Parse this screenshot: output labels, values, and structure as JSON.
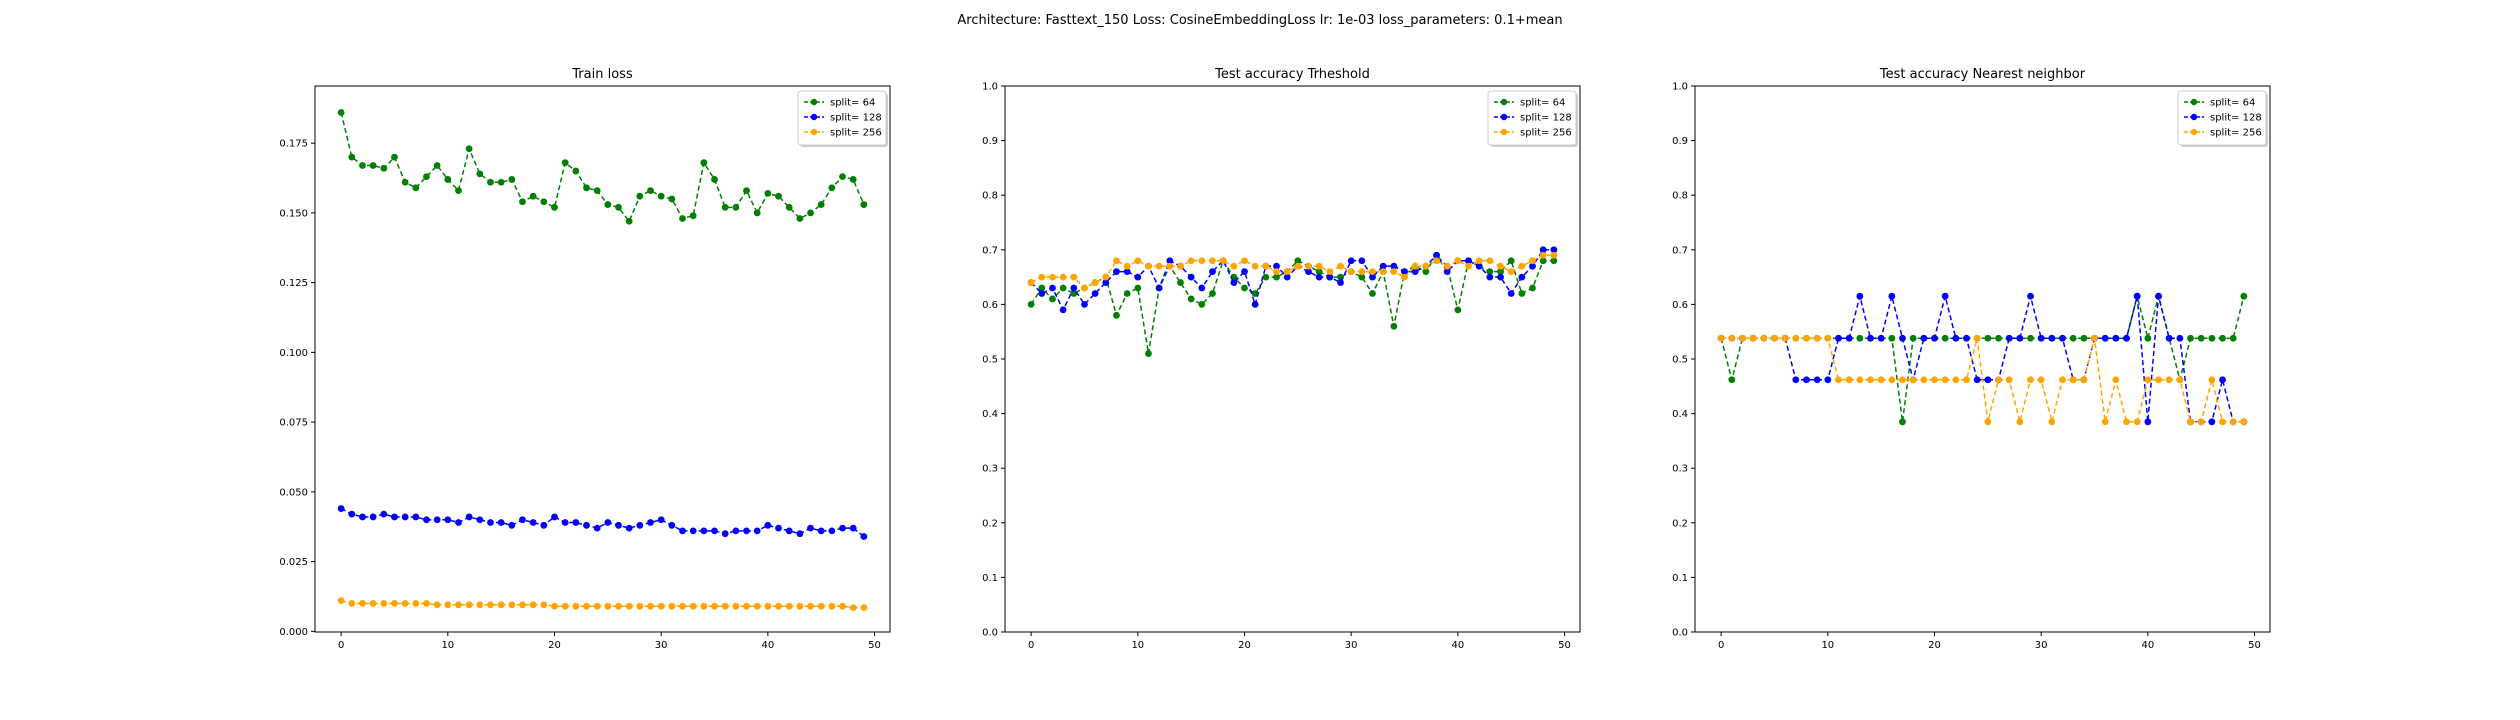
{
  "figure": {
    "suptitle": "Architecture: Fasttext_150 Loss: CosineEmbeddingLoss lr: 1e-03 loss_parameters: 0.1+mean",
    "background": "#ffffff"
  },
  "chart_data": [
    {
      "type": "line",
      "title": "Train loss",
      "xlabel": "",
      "ylabel": "",
      "xlim": [
        -2.45,
        51.45
      ],
      "ylim": [
        -0.00025,
        0.1955
      ],
      "xticks": [
        0,
        10,
        20,
        30,
        40,
        50
      ],
      "yticks": [
        0.0,
        0.025,
        0.05,
        0.075,
        0.1,
        0.125,
        0.15,
        0.175
      ],
      "ytick_labels": [
        "0.000",
        "0.025",
        "0.050",
        "0.075",
        "0.100",
        "0.125",
        "0.150",
        "0.175"
      ],
      "grid": false,
      "legend_position": "top-right",
      "marker": "circle",
      "line_style": "dashed",
      "x": [
        0,
        1,
        2,
        3,
        4,
        5,
        6,
        7,
        8,
        9,
        10,
        11,
        12,
        13,
        14,
        15,
        16,
        17,
        18,
        19,
        20,
        21,
        22,
        23,
        24,
        25,
        26,
        27,
        28,
        29,
        30,
        31,
        32,
        33,
        34,
        35,
        36,
        37,
        38,
        39,
        40,
        41,
        42,
        43,
        44,
        45,
        46,
        47,
        48,
        49
      ],
      "series": [
        {
          "name": "split= 64",
          "color": "#008000",
          "values": [
            0.186,
            0.17,
            0.167,
            0.167,
            0.166,
            0.17,
            0.161,
            0.159,
            0.163,
            0.167,
            0.162,
            0.158,
            0.173,
            0.164,
            0.161,
            0.161,
            0.162,
            0.154,
            0.156,
            0.154,
            0.152,
            0.168,
            0.165,
            0.159,
            0.158,
            0.153,
            0.152,
            0.147,
            0.156,
            0.158,
            0.156,
            0.155,
            0.148,
            0.149,
            0.168,
            0.162,
            0.152,
            0.152,
            0.158,
            0.15,
            0.157,
            0.156,
            0.152,
            0.148,
            0.15,
            0.153,
            0.159,
            0.163,
            0.162,
            0.153
          ]
        },
        {
          "name": "split= 128",
          "color": "#0000ff",
          "values": [
            0.044,
            0.042,
            0.041,
            0.041,
            0.042,
            0.041,
            0.041,
            0.041,
            0.04,
            0.04,
            0.04,
            0.039,
            0.041,
            0.04,
            0.039,
            0.039,
            0.038,
            0.04,
            0.039,
            0.038,
            0.041,
            0.039,
            0.039,
            0.038,
            0.037,
            0.039,
            0.038,
            0.037,
            0.038,
            0.039,
            0.04,
            0.038,
            0.036,
            0.036,
            0.036,
            0.036,
            0.035,
            0.036,
            0.036,
            0.036,
            0.038,
            0.037,
            0.036,
            0.035,
            0.037,
            0.036,
            0.036,
            0.037,
            0.037,
            0.034
          ]
        },
        {
          "name": "split= 256",
          "color": "#ffa500",
          "values": [
            0.011,
            0.01,
            0.01,
            0.01,
            0.01,
            0.01,
            0.01,
            0.01,
            0.01,
            0.0095,
            0.0095,
            0.0095,
            0.0095,
            0.0095,
            0.0095,
            0.0095,
            0.0095,
            0.0095,
            0.0095,
            0.0095,
            0.009,
            0.009,
            0.009,
            0.009,
            0.009,
            0.009,
            0.009,
            0.009,
            0.009,
            0.009,
            0.009,
            0.009,
            0.009,
            0.009,
            0.009,
            0.009,
            0.009,
            0.009,
            0.009,
            0.009,
            0.009,
            0.009,
            0.009,
            0.009,
            0.009,
            0.009,
            0.009,
            0.009,
            0.0085,
            0.0085
          ]
        }
      ]
    },
    {
      "type": "line",
      "title": "Test accuracy Trheshold",
      "xlabel": "",
      "ylabel": "",
      "xlim": [
        -2.45,
        51.45
      ],
      "ylim": [
        0.0,
        1.0
      ],
      "xticks": [
        0,
        10,
        20,
        30,
        40,
        50
      ],
      "yticks": [
        0.0,
        0.1,
        0.2,
        0.3,
        0.4,
        0.5,
        0.6,
        0.7,
        0.8,
        0.9,
        1.0
      ],
      "ytick_labels": [
        "0.0",
        "0.1",
        "0.2",
        "0.3",
        "0.4",
        "0.5",
        "0.6",
        "0.7",
        "0.8",
        "0.9",
        "1.0"
      ],
      "grid": false,
      "legend_position": "top-right",
      "marker": "circle",
      "line_style": "dashed",
      "x": [
        0,
        1,
        2,
        3,
        4,
        5,
        6,
        7,
        8,
        9,
        10,
        11,
        12,
        13,
        14,
        15,
        16,
        17,
        18,
        19,
        20,
        21,
        22,
        23,
        24,
        25,
        26,
        27,
        28,
        29,
        30,
        31,
        32,
        33,
        34,
        35,
        36,
        37,
        38,
        39,
        40,
        41,
        42,
        43,
        44,
        45,
        46,
        47,
        48,
        49
      ],
      "series": [
        {
          "name": "split= 64",
          "color": "#008000",
          "values": [
            0.6,
            0.63,
            0.61,
            0.63,
            0.62,
            0.63,
            0.64,
            0.65,
            0.58,
            0.62,
            0.63,
            0.51,
            0.63,
            0.67,
            0.64,
            0.61,
            0.6,
            0.62,
            0.68,
            0.65,
            0.63,
            0.62,
            0.65,
            0.65,
            0.66,
            0.68,
            0.67,
            0.66,
            0.65,
            0.65,
            0.66,
            0.65,
            0.62,
            0.66,
            0.56,
            0.66,
            0.67,
            0.66,
            0.69,
            0.67,
            0.59,
            0.68,
            0.67,
            0.66,
            0.66,
            0.68,
            0.62,
            0.63,
            0.68,
            0.68
          ]
        },
        {
          "name": "split= 128",
          "color": "#0000ff",
          "values": [
            0.64,
            0.62,
            0.63,
            0.59,
            0.63,
            0.6,
            0.62,
            0.64,
            0.66,
            0.66,
            0.65,
            0.67,
            0.63,
            0.68,
            0.67,
            0.65,
            0.63,
            0.66,
            0.68,
            0.64,
            0.66,
            0.6,
            0.67,
            0.67,
            0.65,
            0.67,
            0.66,
            0.65,
            0.65,
            0.64,
            0.68,
            0.68,
            0.65,
            0.67,
            0.67,
            0.66,
            0.66,
            0.67,
            0.69,
            0.66,
            0.68,
            0.68,
            0.67,
            0.65,
            0.65,
            0.62,
            0.65,
            0.67,
            0.7,
            0.7
          ]
        },
        {
          "name": "split= 256",
          "color": "#ffa500",
          "values": [
            0.64,
            0.65,
            0.65,
            0.65,
            0.65,
            0.63,
            0.64,
            0.65,
            0.68,
            0.67,
            0.68,
            0.67,
            0.67,
            0.67,
            0.67,
            0.68,
            0.68,
            0.68,
            0.68,
            0.67,
            0.68,
            0.67,
            0.67,
            0.66,
            0.66,
            0.67,
            0.67,
            0.67,
            0.66,
            0.67,
            0.66,
            0.66,
            0.66,
            0.66,
            0.66,
            0.65,
            0.67,
            0.67,
            0.68,
            0.67,
            0.68,
            0.67,
            0.68,
            0.68,
            0.67,
            0.66,
            0.67,
            0.68,
            0.69,
            0.69
          ]
        }
      ]
    },
    {
      "type": "line",
      "title": "Test accuracy Nearest neighbor",
      "xlabel": "",
      "ylabel": "",
      "xlim": [
        -2.45,
        51.45
      ],
      "ylim": [
        0.0,
        1.0
      ],
      "xticks": [
        0,
        10,
        20,
        30,
        40,
        50
      ],
      "yticks": [
        0.0,
        0.1,
        0.2,
        0.3,
        0.4,
        0.5,
        0.6,
        0.7,
        0.8,
        0.9,
        1.0
      ],
      "ytick_labels": [
        "0.0",
        "0.1",
        "0.2",
        "0.3",
        "0.4",
        "0.5",
        "0.6",
        "0.7",
        "0.8",
        "0.9",
        "1.0"
      ],
      "grid": false,
      "legend_position": "top-right",
      "marker": "circle",
      "line_style": "dashed",
      "x": [
        0,
        1,
        2,
        3,
        4,
        5,
        6,
        7,
        8,
        9,
        10,
        11,
        12,
        13,
        14,
        15,
        16,
        17,
        18,
        19,
        20,
        21,
        22,
        23,
        24,
        25,
        26,
        27,
        28,
        29,
        30,
        31,
        32,
        33,
        34,
        35,
        36,
        37,
        38,
        39,
        40,
        41,
        42,
        43,
        44,
        45,
        46,
        47,
        48,
        49
      ],
      "series": [
        {
          "name": "split= 64",
          "color": "#008000",
          "values": [
            0.538,
            0.462,
            0.538,
            0.538,
            0.538,
            0.538,
            0.538,
            0.538,
            0.538,
            0.538,
            0.538,
            0.538,
            0.538,
            0.538,
            0.538,
            0.538,
            0.538,
            0.385,
            0.538,
            0.538,
            0.538,
            0.538,
            0.538,
            0.538,
            0.538,
            0.538,
            0.538,
            0.538,
            0.538,
            0.538,
            0.538,
            0.538,
            0.538,
            0.538,
            0.538,
            0.538,
            0.538,
            0.538,
            0.538,
            0.615,
            0.538,
            0.615,
            0.538,
            0.462,
            0.538,
            0.538,
            0.538,
            0.538,
            0.538,
            0.615
          ]
        },
        {
          "name": "split= 128",
          "color": "#0000ff",
          "values": [
            0.538,
            0.538,
            0.538,
            0.538,
            0.538,
            0.538,
            0.538,
            0.462,
            0.462,
            0.462,
            0.462,
            0.538,
            0.538,
            0.615,
            0.538,
            0.538,
            0.615,
            0.538,
            0.462,
            0.538,
            0.538,
            0.615,
            0.538,
            0.538,
            0.462,
            0.462,
            0.462,
            0.538,
            0.538,
            0.615,
            0.538,
            0.538,
            0.538,
            0.462,
            0.462,
            0.538,
            0.538,
            0.538,
            0.538,
            0.615,
            0.385,
            0.615,
            0.538,
            0.538,
            0.385,
            0.385,
            0.385,
            0.462,
            0.385,
            0.385
          ]
        },
        {
          "name": "split= 256",
          "color": "#ffa500",
          "values": [
            0.538,
            0.538,
            0.538,
            0.538,
            0.538,
            0.538,
            0.538,
            0.538,
            0.538,
            0.538,
            0.538,
            0.462,
            0.462,
            0.462,
            0.462,
            0.462,
            0.462,
            0.462,
            0.462,
            0.462,
            0.462,
            0.462,
            0.462,
            0.462,
            0.538,
            0.385,
            0.462,
            0.462,
            0.385,
            0.462,
            0.462,
            0.385,
            0.462,
            0.462,
            0.462,
            0.538,
            0.385,
            0.462,
            0.385,
            0.385,
            0.462,
            0.462,
            0.462,
            0.462,
            0.385,
            0.385,
            0.462,
            0.385,
            0.385,
            0.385
          ]
        }
      ]
    }
  ]
}
